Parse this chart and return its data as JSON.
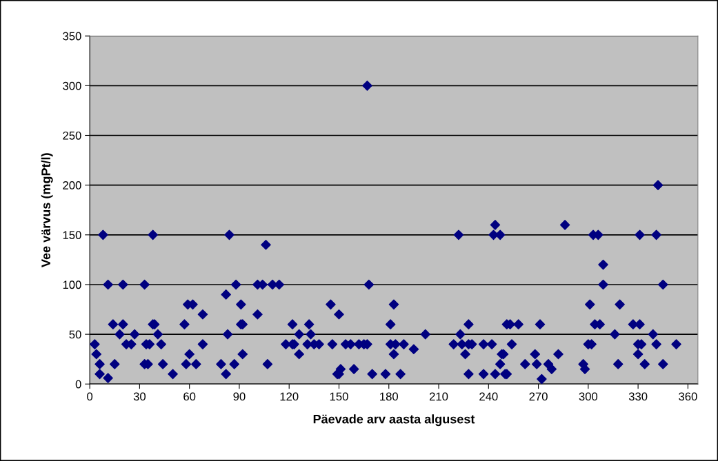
{
  "chart_data": {
    "type": "scatter",
    "xlabel": "Päevade arv aasta algusest",
    "ylabel": "Vee värvus (mgPt/l)",
    "xlim": [
      0,
      366
    ],
    "xticks": [
      0,
      30,
      60,
      90,
      120,
      150,
      180,
      210,
      240,
      270,
      300,
      330,
      360
    ],
    "ylim": [
      0,
      350
    ],
    "yticks": [
      0,
      50,
      100,
      150,
      200,
      250,
      300,
      350
    ],
    "grid": "y",
    "marker": "diamond",
    "series": [
      {
        "color": "#000080",
        "x": [
          3,
          4,
          6,
          6,
          8,
          11,
          11,
          14,
          15,
          18,
          20,
          20,
          22,
          25,
          27,
          33,
          33,
          34,
          35,
          36,
          38,
          38,
          39,
          41,
          43,
          44,
          50,
          57,
          58,
          59,
          62,
          60,
          64,
          68,
          68,
          79,
          82,
          83,
          82,
          84,
          87,
          88,
          91,
          92,
          91,
          92,
          101,
          104,
          101,
          106,
          107,
          110,
          114,
          118,
          122,
          122,
          123,
          126,
          126,
          131,
          132,
          133,
          135,
          138,
          145,
          146,
          150,
          149,
          150,
          151,
          154,
          157,
          159,
          162,
          165,
          167,
          167,
          168,
          170,
          178,
          181,
          183,
          181,
          184,
          189,
          183,
          187,
          195,
          202,
          219,
          222,
          223,
          228,
          224,
          228,
          230,
          226,
          228,
          237,
          242,
          237,
          244,
          243,
          247,
          244,
          247,
          248,
          249,
          250,
          251,
          251,
          253,
          258,
          254,
          262,
          268,
          269,
          271,
          272,
          276,
          278,
          282,
          286,
          297,
          298,
          301,
          300,
          302,
          303,
          306,
          304,
          307,
          309,
          309,
          316,
          318,
          319,
          327,
          331,
          330,
          332,
          330,
          331,
          334,
          339,
          341,
          342,
          341,
          345,
          345,
          353
        ],
        "values": [
          40,
          30,
          20,
          10,
          150,
          6,
          100,
          60,
          20,
          50,
          100,
          60,
          40,
          40,
          50,
          100,
          20,
          40,
          20,
          40,
          150,
          60,
          60,
          50,
          40,
          20,
          10,
          60,
          20,
          80,
          80,
          30,
          20,
          40,
          70,
          20,
          90,
          50,
          10,
          150,
          20,
          100,
          60,
          60,
          80,
          30,
          100,
          100,
          70,
          140,
          20,
          100,
          100,
          40,
          60,
          40,
          40,
          50,
          30,
          40,
          60,
          50,
          40,
          40,
          80,
          40,
          70,
          10,
          10,
          15,
          40,
          40,
          15,
          40,
          40,
          40,
          300,
          100,
          10,
          10,
          60,
          80,
          40,
          40,
          40,
          30,
          10,
          35,
          50,
          40,
          150,
          50,
          60,
          40,
          40,
          40,
          30,
          10,
          40,
          40,
          10,
          160,
          150,
          150,
          10,
          20,
          30,
          30,
          10,
          60,
          10,
          60,
          60,
          40,
          20,
          30,
          20,
          60,
          5,
          20,
          15,
          30,
          160,
          20,
          15,
          80,
          40,
          40,
          150,
          150,
          60,
          60,
          120,
          100,
          50,
          20,
          80,
          60,
          60,
          40,
          40,
          30,
          150,
          20,
          50,
          150,
          200,
          40,
          100,
          20,
          40
        ]
      }
    ]
  }
}
